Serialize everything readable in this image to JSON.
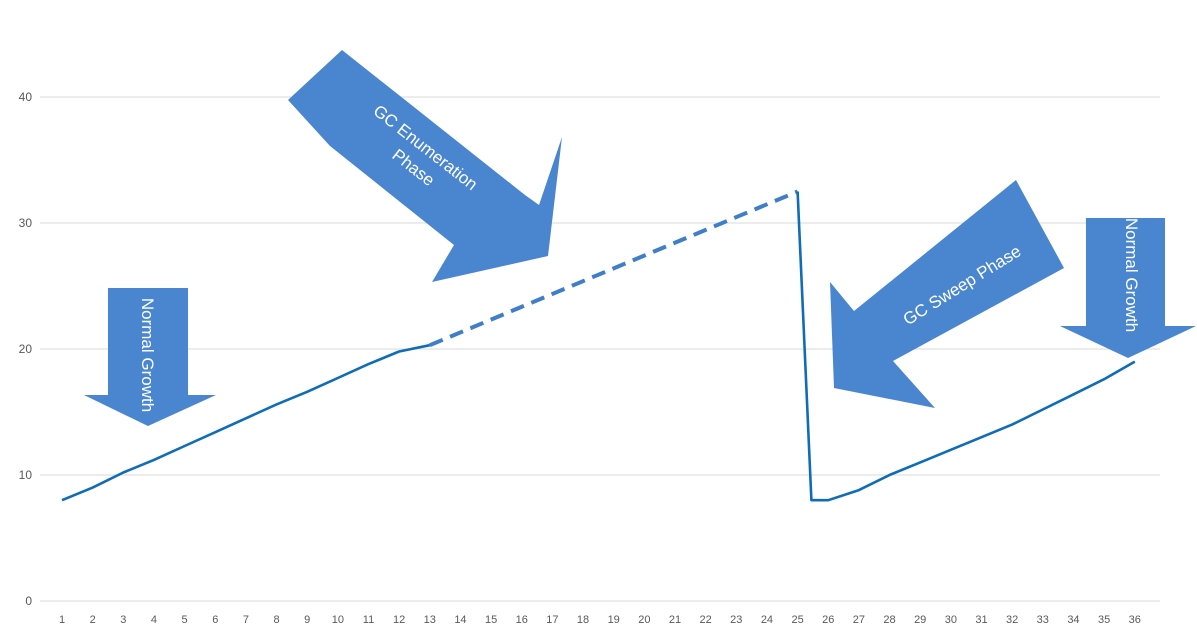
{
  "chart_data": {
    "type": "line",
    "x": [
      1,
      2,
      3,
      4,
      5,
      6,
      7,
      8,
      9,
      10,
      11,
      12,
      13,
      14,
      15,
      16,
      17,
      18,
      19,
      20,
      21,
      22,
      23,
      24,
      25,
      26,
      27,
      28,
      29,
      30,
      31,
      32,
      33,
      34,
      35,
      36
    ],
    "ylim": [
      0,
      40
    ],
    "yticks": [
      0,
      10,
      20,
      30,
      40
    ],
    "grid": true,
    "legend": "none",
    "series": [
      {
        "style": "solid",
        "x": [
          1,
          2,
          3,
          4,
          5,
          6,
          7,
          8,
          9,
          10,
          11,
          12,
          13
        ],
        "values": [
          8,
          9,
          10.2,
          11.2,
          12.3,
          13.4,
          14.5,
          15.6,
          16.6,
          17.7,
          18.8,
          19.8,
          20.3
        ]
      },
      {
        "style": "dashed",
        "x": [
          13,
          25
        ],
        "values": [
          20.3,
          32.5
        ]
      },
      {
        "style": "solid",
        "x": [
          25,
          25.45,
          26,
          27,
          28,
          29,
          30,
          31,
          32,
          33,
          34,
          35,
          36
        ],
        "values": [
          32.5,
          8,
          8,
          8.8,
          10,
          11,
          12,
          13,
          14,
          15.2,
          16.4,
          17.6,
          19
        ]
      }
    ],
    "annotations": [
      {
        "name": "normal-growth-left",
        "text": "Normal Growth"
      },
      {
        "name": "gc-enumeration",
        "text": "GC Enumeration Phase"
      },
      {
        "name": "gc-sweep",
        "text": "GC Sweep Phase"
      },
      {
        "name": "normal-growth-right",
        "text": "Normal Growth"
      }
    ],
    "colors": {
      "line": "#0f6cb6",
      "arrow": "#4a86cf",
      "grid": "#d9d9d9",
      "text": "#595959"
    }
  }
}
